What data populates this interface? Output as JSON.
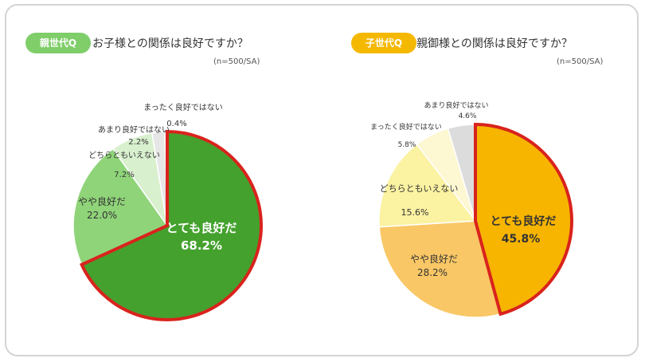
{
  "colors": {
    "left_badge": "#7fce6a",
    "right_badge": "#f5b800",
    "highlight_border": "#d9231d",
    "gray": "#dcdcdc"
  },
  "charts": [
    {
      "badge": "親世代Q",
      "question": "お子様との関係は良好ですか？",
      "sample": "(n=500/SA)",
      "chart_data": {
        "type": "pie",
        "categories": [
          "とても良好だ",
          "やや良好だ",
          "どちらともいえない",
          "あまり良好ではない",
          "まったく良好ではない"
        ],
        "values": [
          68.2,
          22.0,
          7.2,
          2.2,
          0.4
        ],
        "value_labels": [
          "68.2%",
          "22.0%",
          "7.2%",
          "2.2%",
          "0.4%"
        ],
        "colors": [
          "#44a12d",
          "#8fd479",
          "#d9f0cf",
          "#e6e6e6",
          "#c8c8c8"
        ],
        "highlight_index": 0
      }
    },
    {
      "badge": "子世代Q",
      "question": "親御様との関係は良好ですか？",
      "sample": "(n=500/SA)",
      "chart_data": {
        "type": "pie",
        "categories": [
          "とても良好だ",
          "やや良好だ",
          "どちらともいえない",
          "まったく良好ではない",
          "あまり良好ではない"
        ],
        "values": [
          45.8,
          28.2,
          15.6,
          5.8,
          4.6
        ],
        "value_labels": [
          "45.8%",
          "28.2%",
          "15.6%",
          "5.8%",
          "4.6%"
        ],
        "colors": [
          "#f7b500",
          "#f9c765",
          "#fbf2a2",
          "#fdf7d2",
          "#dcdcdc"
        ],
        "highlight_index": 0
      }
    }
  ]
}
